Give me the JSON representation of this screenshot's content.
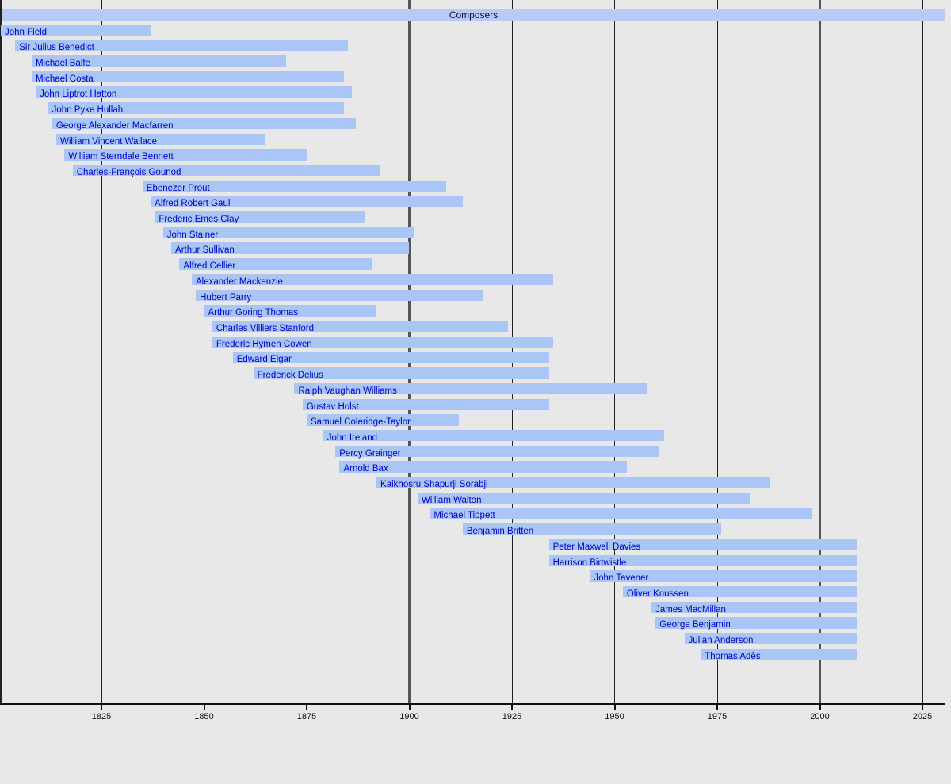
{
  "chart_data": {
    "type": "timeline",
    "title": "Composers",
    "x_axis": {
      "min": 1800,
      "max": 2032,
      "tick_years": [
        1825,
        1850,
        1875,
        1900,
        1925,
        1950,
        1975,
        2000,
        2025
      ],
      "major_gridline_years": [
        1900,
        2000
      ],
      "grid": true
    },
    "bars": [
      {
        "name": "John Field",
        "start": 1800,
        "end": 1837
      },
      {
        "name": "Sir Julius Benedict",
        "start": 1804,
        "end": 1885
      },
      {
        "name": "Michael Balfe",
        "start": 1808,
        "end": 1870
      },
      {
        "name": "Michael Costa",
        "start": 1808,
        "end": 1884
      },
      {
        "name": "John Liptrot Hatton",
        "start": 1809,
        "end": 1886
      },
      {
        "name": "John Pyke Hullah",
        "start": 1812,
        "end": 1884
      },
      {
        "name": "George Alexander Macfarren",
        "start": 1813,
        "end": 1887
      },
      {
        "name": "William Vincent Wallace",
        "start": 1814,
        "end": 1865
      },
      {
        "name": "William Sterndale Bennett",
        "start": 1816,
        "end": 1875
      },
      {
        "name": "Charles-François Gounod",
        "start": 1818,
        "end": 1893
      },
      {
        "name": "Ebenezer Prout",
        "start": 1835,
        "end": 1909
      },
      {
        "name": "Alfred Robert Gaul",
        "start": 1837,
        "end": 1913
      },
      {
        "name": "Frederic Emes Clay",
        "start": 1838,
        "end": 1889
      },
      {
        "name": "John Stainer",
        "start": 1840,
        "end": 1901
      },
      {
        "name": "Arthur Sullivan",
        "start": 1842,
        "end": 1900
      },
      {
        "name": "Alfred Cellier",
        "start": 1844,
        "end": 1891
      },
      {
        "name": "Alexander Mackenzie",
        "start": 1847,
        "end": 1935
      },
      {
        "name": "Hubert Parry",
        "start": 1848,
        "end": 1918
      },
      {
        "name": "Arthur Goring Thomas",
        "start": 1850,
        "end": 1892
      },
      {
        "name": "Charles Villiers Stanford",
        "start": 1852,
        "end": 1924
      },
      {
        "name": "Frederic Hymen Cowen",
        "start": 1852,
        "end": 1935
      },
      {
        "name": "Edward Elgar",
        "start": 1857,
        "end": 1934
      },
      {
        "name": "Frederick Delius",
        "start": 1862,
        "end": 1934
      },
      {
        "name": "Ralph Vaughan Williams",
        "start": 1872,
        "end": 1958
      },
      {
        "name": "Gustav Holst",
        "start": 1874,
        "end": 1934
      },
      {
        "name": "Samuel Coleridge-Taylor",
        "start": 1875,
        "end": 1912
      },
      {
        "name": "John Ireland",
        "start": 1879,
        "end": 1962
      },
      {
        "name": "Percy Grainger",
        "start": 1882,
        "end": 1961
      },
      {
        "name": "Arnold Bax",
        "start": 1883,
        "end": 1953
      },
      {
        "name": "Kaikhosru Shapurji Sorabji",
        "start": 1892,
        "end": 1988
      },
      {
        "name": "William Walton",
        "start": 1902,
        "end": 1983
      },
      {
        "name": "Michael Tippett",
        "start": 1905,
        "end": 1998
      },
      {
        "name": "Benjamin Britten",
        "start": 1913,
        "end": 1976
      },
      {
        "name": "Peter Maxwell Davies",
        "start": 1934,
        "end": 2009
      },
      {
        "name": "Harrison Birtwistle",
        "start": 1934,
        "end": 2009
      },
      {
        "name": "John Tavener",
        "start": 1944,
        "end": 2009
      },
      {
        "name": "Oliver Knussen",
        "start": 1952,
        "end": 2009
      },
      {
        "name": "James MacMillan",
        "start": 1959,
        "end": 2009
      },
      {
        "name": "George Benjamin",
        "start": 1960,
        "end": 2009
      },
      {
        "name": "Julian Anderson",
        "start": 1967,
        "end": 2009
      },
      {
        "name": "Thomas Adès",
        "start": 1971,
        "end": 2009
      }
    ]
  },
  "colors": {
    "background": "#e8e8e8",
    "bar_fill": "#aac6f6",
    "title_bar_fill": "#b7cbf8",
    "name_text": "#0000cc",
    "title_text": "#10102e",
    "grid_thin": "#222222",
    "grid_thick": "#555555",
    "axis": "#111111",
    "tick_label_text": "#111111"
  }
}
